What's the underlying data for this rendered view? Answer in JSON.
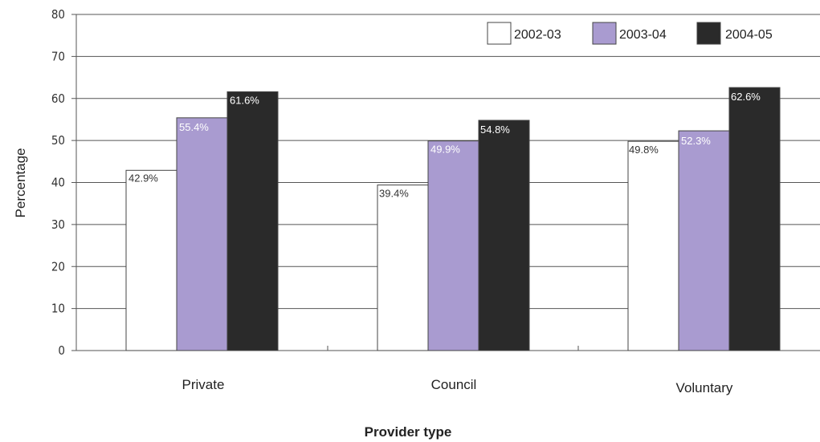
{
  "chart_data": {
    "type": "bar",
    "categories": [
      "Private",
      "Council",
      "Voluntary"
    ],
    "series": [
      {
        "name": "2002-03",
        "values": [
          42.9,
          39.4,
          49.8
        ],
        "labels": [
          "42.9%",
          "39.4%",
          "49.8%"
        ],
        "color": "#ffffff",
        "label_color": "#333333"
      },
      {
        "name": "2003-04",
        "values": [
          55.4,
          49.9,
          52.3
        ],
        "labels": [
          "55.4%",
          "49.9%",
          "52.3%"
        ],
        "color": "#a99bd0",
        "label_color": "#ffffff"
      },
      {
        "name": "2004-05",
        "values": [
          61.6,
          54.8,
          62.6
        ],
        "labels": [
          "61.6%",
          "54.8%",
          "62.6%"
        ],
        "color": "#2a2a2a",
        "label_color": "#ffffff"
      }
    ],
    "xlabel": "Provider type",
    "ylabel": "Percentage",
    "ylim": [
      0,
      80
    ],
    "yticks": [
      "0",
      "10",
      "20",
      "30",
      "40",
      "50",
      "60",
      "70",
      "80"
    ],
    "grid": true,
    "legend_position": "top-right"
  }
}
